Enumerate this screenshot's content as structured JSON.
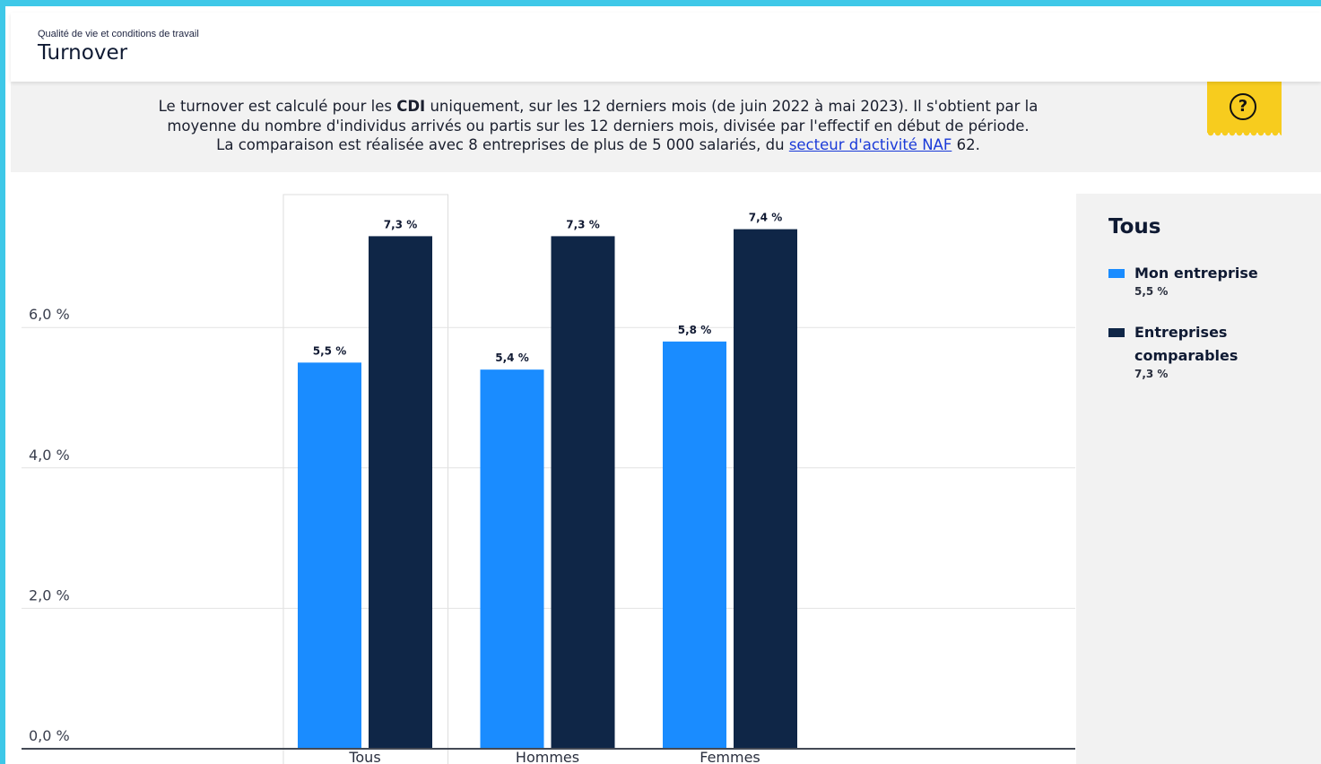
{
  "header": {
    "subtitle": "Qualité de vie et conditions de travail",
    "title": "Turnover"
  },
  "info": {
    "line1_a": "Le turnover est calculé pour les ",
    "line1_bold": "CDI",
    "line1_b": " uniquement, sur les 12 derniers mois (de juin 2022 à mai 2023). Il s'obtient par la",
    "line2": "moyenne du nombre d'individus arrivés ou partis sur les 12 derniers mois, divisée par l'effectif en début de période.",
    "line3_a": "La comparaison est réalisée avec 8 entreprises de plus de 5 000 salariés, du ",
    "line3_link": "secteur d'activité NAF",
    "line3_b": " 62."
  },
  "help_icon": "question-circle-icon",
  "colors": {
    "mon_entreprise": "#1a8cff",
    "entreprises_comparables": "#0f2647",
    "accent": "#3ec8e8",
    "help_bg": "#f7cc1e"
  },
  "legend": {
    "title": "Tous",
    "items": [
      {
        "name": "Mon entreprise",
        "value": "5,5 %"
      },
      {
        "name": "Entreprises comparables",
        "value": "7,3 %"
      }
    ]
  },
  "chart_data": {
    "type": "bar",
    "categories": [
      "Tous",
      "Hommes",
      "Femmes"
    ],
    "series": [
      {
        "name": "Mon entreprise",
        "values": [
          5.5,
          5.4,
          5.8
        ],
        "labels": [
          "5,5 %",
          "5,4 %",
          "5,8 %"
        ]
      },
      {
        "name": "Entreprises comparables",
        "values": [
          7.3,
          7.3,
          7.4
        ],
        "labels": [
          "7,3 %",
          "7,3 %",
          "7,4 %"
        ]
      }
    ],
    "yticks": [
      {
        "value": 0,
        "label": "0,0 %"
      },
      {
        "value": 2,
        "label": "2,0 %"
      },
      {
        "value": 4,
        "label": "4,0 %"
      },
      {
        "value": 6,
        "label": "6,0 %"
      }
    ],
    "ylim": [
      0,
      8
    ],
    "grid": true,
    "selected_category": "Tous",
    "legend_position": "right"
  }
}
